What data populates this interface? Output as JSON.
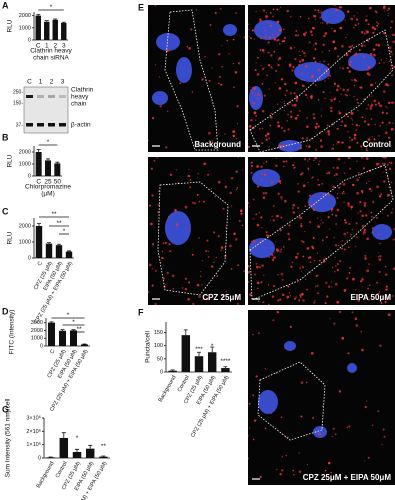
{
  "chart_data": [
    {
      "type": "bar",
      "panel": "A",
      "ylabel": "RLU",
      "categories": [
        "C",
        "1",
        "2",
        "3"
      ],
      "values": [
        2000,
        1500,
        1650,
        1400
      ],
      "errors": [
        80,
        90,
        70,
        60
      ],
      "color": "#111111",
      "ylim": [
        0,
        2300
      ],
      "yticks": [
        0,
        1000,
        2000
      ],
      "xlabel": [
        "Clathrin heavy",
        "chain siRNA"
      ],
      "annotations": [
        "*"
      ]
    },
    {
      "type": "bar",
      "panel": "B",
      "ylabel": "RLU",
      "categories": [
        "C",
        "25",
        "50"
      ],
      "values": [
        2000,
        1300,
        1050
      ],
      "errors": [
        200,
        120,
        100
      ],
      "color": "#111111",
      "ylim": [
        0,
        2500
      ],
      "yticks": [
        0,
        1000,
        2000
      ],
      "xlabel": [
        "Chlorpromazine",
        "(μM)"
      ],
      "annotations": [
        "*"
      ]
    },
    {
      "type": "bar",
      "panel": "C",
      "ylabel": "RLU",
      "categories": [
        "C",
        "CPZ (25 μM)",
        "EIPA (50 μM)",
        "CPZ (25 μM) + EIPA (50 μM)"
      ],
      "values": [
        2000,
        900,
        800,
        400
      ],
      "errors": [
        150,
        60,
        60,
        40
      ],
      "color": "#111111",
      "ylim": [
        0,
        2500
      ],
      "yticks": [
        0,
        1000,
        2000
      ],
      "annotations": [
        "**",
        "**",
        "*"
      ]
    },
    {
      "type": "bar",
      "panel": "D",
      "ylabel": "FITC (Intensity)",
      "categories": [
        "C",
        "CPZ (25 μM)",
        "EIPA (50 μM)",
        "CPZ (25 μM) + EIPA (50 μM)"
      ],
      "values": [
        3000,
        1950,
        2000,
        200
      ],
      "errors": [
        100,
        150,
        100,
        50
      ],
      "color": "#111111",
      "ylim": [
        0,
        3600
      ],
      "yticks": [
        0,
        1000,
        2000,
        3000
      ],
      "annotations": [
        "*",
        "*",
        "**"
      ]
    },
    {
      "type": "bar",
      "panel": "F",
      "ylabel": "Puncta/cell",
      "categories": [
        "Background",
        "Control",
        "CPZ (25 μM)",
        "EIPA (50 μM)",
        "CPZ (25 μM) + EIPA (50 μM)"
      ],
      "values": [
        5,
        140,
        60,
        75,
        15
      ],
      "errors": [
        3,
        20,
        15,
        20,
        5
      ],
      "color": "#111111",
      "ylim": [
        0,
        190
      ],
      "yticks": [
        0,
        50,
        100,
        150
      ],
      "annotations": [
        "***",
        "*",
        "****"
      ]
    },
    {
      "type": "bar",
      "panel": "G",
      "ylabel": "Sum Intensity (561 nm)/cell",
      "categories": [
        "Background",
        "Control",
        "CPZ (25 μM)",
        "EIPA (50 μM)",
        "CPZ (25 μM) + EIPA (50 μM)"
      ],
      "values": [
        50000,
        1500000,
        450000,
        700000,
        100000
      ],
      "errors": [
        20000,
        400000,
        200000,
        250000,
        50000
      ],
      "color": "#111111",
      "ylim": [
        0,
        3000000
      ],
      "yticks": [
        0,
        {
          "value": 1000000,
          "label": "1×10⁶"
        },
        {
          "value": 2000000,
          "label": "2×10⁶"
        },
        {
          "value": 3000000,
          "label": "3×10⁶"
        }
      ],
      "annotations": [
        "*",
        "**"
      ]
    }
  ],
  "blot": {
    "lanes": [
      "C",
      "1",
      "2",
      "3"
    ],
    "markers": [
      "250-",
      "150-",
      "37-"
    ],
    "bands": [
      [
        "Clathrin",
        "heavy",
        "chain"
      ],
      [
        "β-actin"
      ]
    ]
  },
  "panel_e": {
    "panel": "E",
    "images": [
      "Background",
      "Control",
      "CPZ 25μM",
      "EIPA 50μM",
      "CPZ 25μM + EIPA 50μM"
    ]
  }
}
